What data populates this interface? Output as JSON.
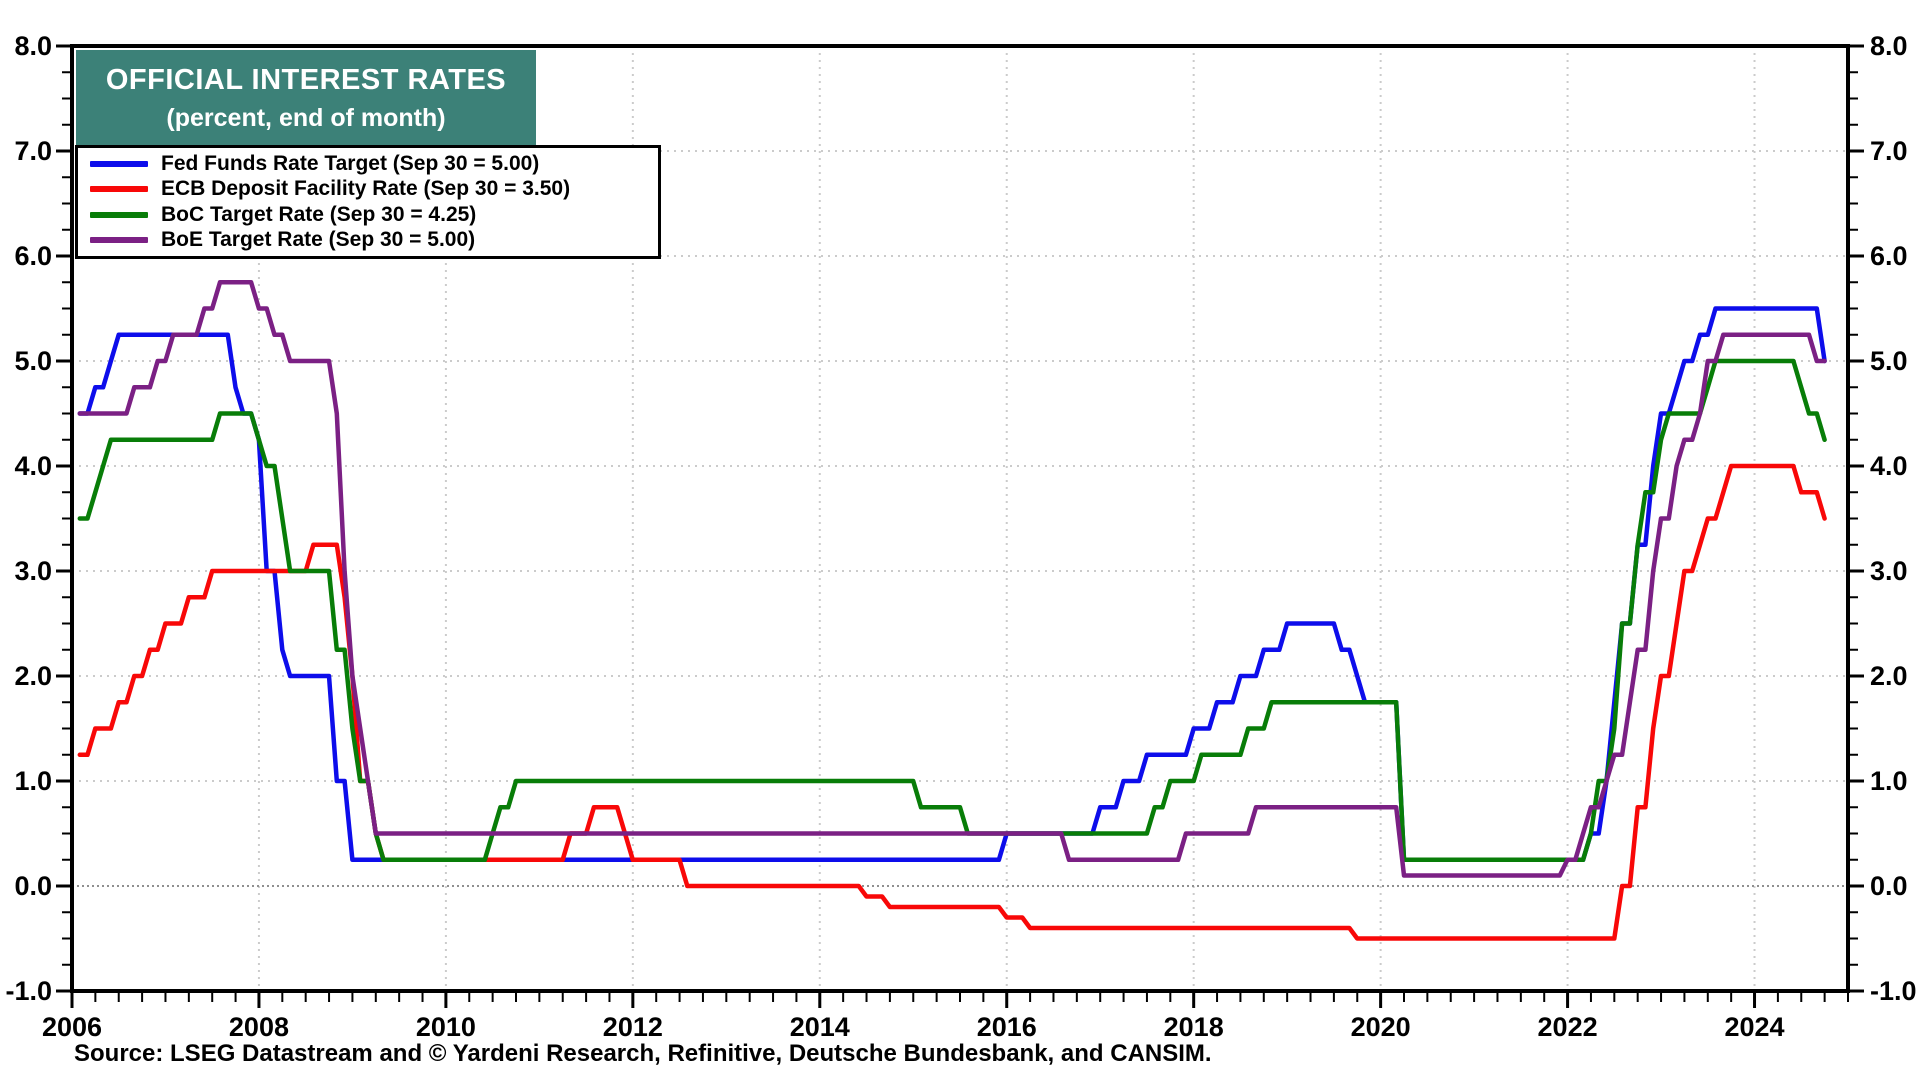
{
  "title_box": {
    "line1": "OFFICIAL INTEREST RATES",
    "line2": "(percent, end of month)",
    "bg_color": "#3C8178",
    "text_color": "#FFFFFF"
  },
  "source_note": "Source: LSEG Datastream and © Yardeni Research, Refinitive, Deutsche Bundesbank, and CANSIM.",
  "chart_data": {
    "type": "line",
    "title": "OFFICIAL INTEREST RATES",
    "subtitle": "(percent, end of month)",
    "frequency": "monthly, end of month; x encoded as year + month/12",
    "x_end": 2024.75,
    "x_axis": {
      "range": [
        2006,
        2025
      ],
      "minor_tick_step": 0.25
    },
    "y_axis": {
      "range": [
        -1,
        8
      ],
      "minor_tick_step": 0.25,
      "label_sides": "both"
    },
    "x_ticks": [
      {
        "v": 2006,
        "label": "2006"
      },
      {
        "v": 2008,
        "label": "2008"
      },
      {
        "v": 2010,
        "label": "2010"
      },
      {
        "v": 2012,
        "label": "2012"
      },
      {
        "v": 2014,
        "label": "2014"
      },
      {
        "v": 2016,
        "label": "2016"
      },
      {
        "v": 2018,
        "label": "2018"
      },
      {
        "v": 2020,
        "label": "2020"
      },
      {
        "v": 2022,
        "label": "2022"
      },
      {
        "v": 2024,
        "label": "2024"
      }
    ],
    "y_ticks": [
      {
        "v": 8,
        "label": "8.0"
      },
      {
        "v": 7,
        "label": "7.0"
      },
      {
        "v": 6,
        "label": "6.0"
      },
      {
        "v": 5,
        "label": "5.0"
      },
      {
        "v": 4,
        "label": "4.0"
      },
      {
        "v": 3,
        "label": "3.0"
      },
      {
        "v": 2,
        "label": "2.0"
      },
      {
        "v": 1,
        "label": "1.0"
      },
      {
        "v": 0,
        "label": "0.0"
      },
      {
        "v": -1,
        "label": "-1.0"
      }
    ],
    "gridlines": {
      "vertical_years": [
        2008,
        2010,
        2012,
        2014,
        2016,
        2018,
        2020,
        2022,
        2024
      ],
      "horizontal_values": [
        1,
        2,
        3,
        4,
        5,
        6,
        7
      ],
      "zero_line": 0,
      "style": "dotted"
    },
    "style": {
      "frame_color": "#000000",
      "grid_color": "#CBCBCB",
      "zero_line_color": "#8F8F8F"
    },
    "legend_position": "top-left",
    "series": [
      {
        "id": "fed",
        "label": "Fed Funds Rate Target (Sep 30 = 5.00)",
        "color": "#0D0DEB",
        "last_value": 5.0,
        "steps": [
          [
            2006.083,
            4.5
          ],
          [
            2006.25,
            4.75
          ],
          [
            2006.417,
            5.0
          ],
          [
            2006.5,
            5.25
          ],
          [
            2007.75,
            4.75
          ],
          [
            2007.833,
            4.5
          ],
          [
            2008.0,
            4.25
          ],
          [
            2008.083,
            3.0
          ],
          [
            2008.25,
            2.25
          ],
          [
            2008.333,
            2.0
          ],
          [
            2008.833,
            1.0
          ],
          [
            2009.0,
            0.25
          ],
          [
            2016.0,
            0.5
          ],
          [
            2017.0,
            0.75
          ],
          [
            2017.25,
            1.0
          ],
          [
            2017.5,
            1.25
          ],
          [
            2018.0,
            1.5
          ],
          [
            2018.25,
            1.75
          ],
          [
            2018.5,
            2.0
          ],
          [
            2018.75,
            2.25
          ],
          [
            2019.0,
            2.5
          ],
          [
            2019.583,
            2.25
          ],
          [
            2019.75,
            2.0
          ],
          [
            2019.833,
            1.75
          ],
          [
            2020.25,
            0.25
          ],
          [
            2022.25,
            0.5
          ],
          [
            2022.417,
            1.0
          ],
          [
            2022.5,
            1.75
          ],
          [
            2022.583,
            2.5
          ],
          [
            2022.75,
            3.25
          ],
          [
            2022.917,
            4.0
          ],
          [
            2023.0,
            4.5
          ],
          [
            2023.167,
            4.75
          ],
          [
            2023.25,
            5.0
          ],
          [
            2023.417,
            5.25
          ],
          [
            2023.583,
            5.5
          ],
          [
            2024.75,
            5.0
          ]
        ]
      },
      {
        "id": "ecb",
        "label": "ECB Deposit Facility Rate (Sep 30 = 3.50)",
        "color": "#F80808",
        "last_value": 3.5,
        "steps": [
          [
            2006.083,
            1.25
          ],
          [
            2006.25,
            1.5
          ],
          [
            2006.5,
            1.75
          ],
          [
            2006.667,
            2.0
          ],
          [
            2006.833,
            2.25
          ],
          [
            2007.0,
            2.5
          ],
          [
            2007.25,
            2.75
          ],
          [
            2007.5,
            3.0
          ],
          [
            2008.583,
            3.25
          ],
          [
            2008.917,
            2.75
          ],
          [
            2009.0,
            2.0
          ],
          [
            2009.083,
            1.0
          ],
          [
            2009.25,
            0.5
          ],
          [
            2009.333,
            0.25
          ],
          [
            2011.333,
            0.5
          ],
          [
            2011.583,
            0.75
          ],
          [
            2011.917,
            0.5
          ],
          [
            2012.0,
            0.25
          ],
          [
            2012.583,
            0.0
          ],
          [
            2014.5,
            -0.1
          ],
          [
            2014.75,
            -0.2
          ],
          [
            2016.0,
            -0.3
          ],
          [
            2016.25,
            -0.4
          ],
          [
            2019.75,
            -0.5
          ],
          [
            2022.583,
            0.0
          ],
          [
            2022.75,
            0.75
          ],
          [
            2022.917,
            1.5
          ],
          [
            2023.0,
            2.0
          ],
          [
            2023.167,
            2.5
          ],
          [
            2023.25,
            3.0
          ],
          [
            2023.417,
            3.25
          ],
          [
            2023.5,
            3.5
          ],
          [
            2023.667,
            3.75
          ],
          [
            2023.75,
            4.0
          ],
          [
            2024.5,
            3.75
          ],
          [
            2024.75,
            3.5
          ]
        ]
      },
      {
        "id": "boc",
        "label": "BoC Target Rate (Sep 30 = 4.25)",
        "color": "#087D08",
        "last_value": 4.25,
        "steps": [
          [
            2006.083,
            3.5
          ],
          [
            2006.25,
            3.75
          ],
          [
            2006.333,
            4.0
          ],
          [
            2006.417,
            4.25
          ],
          [
            2007.583,
            4.5
          ],
          [
            2008.0,
            4.25
          ],
          [
            2008.083,
            4.0
          ],
          [
            2008.25,
            3.5
          ],
          [
            2008.333,
            3.0
          ],
          [
            2008.833,
            2.25
          ],
          [
            2009.0,
            1.5
          ],
          [
            2009.083,
            1.0
          ],
          [
            2009.25,
            0.5
          ],
          [
            2009.333,
            0.25
          ],
          [
            2010.5,
            0.5
          ],
          [
            2010.583,
            0.75
          ],
          [
            2010.75,
            1.0
          ],
          [
            2015.083,
            0.75
          ],
          [
            2015.583,
            0.5
          ],
          [
            2017.583,
            0.75
          ],
          [
            2017.75,
            1.0
          ],
          [
            2018.083,
            1.25
          ],
          [
            2018.583,
            1.5
          ],
          [
            2018.833,
            1.75
          ],
          [
            2020.25,
            0.25
          ],
          [
            2022.25,
            0.5
          ],
          [
            2022.333,
            1.0
          ],
          [
            2022.5,
            1.5
          ],
          [
            2022.583,
            2.5
          ],
          [
            2022.75,
            3.25
          ],
          [
            2022.833,
            3.75
          ],
          [
            2023.0,
            4.25
          ],
          [
            2023.083,
            4.5
          ],
          [
            2023.5,
            4.75
          ],
          [
            2023.583,
            5.0
          ],
          [
            2024.5,
            4.75
          ],
          [
            2024.583,
            4.5
          ],
          [
            2024.75,
            4.25
          ]
        ]
      },
      {
        "id": "boe",
        "label": "BoE Target Rate (Sep 30 = 5.00)",
        "color": "#7B2084",
        "last_value": 5.0,
        "steps": [
          [
            2006.083,
            4.5
          ],
          [
            2006.667,
            4.75
          ],
          [
            2006.917,
            5.0
          ],
          [
            2007.083,
            5.25
          ],
          [
            2007.417,
            5.5
          ],
          [
            2007.583,
            5.75
          ],
          [
            2008.0,
            5.5
          ],
          [
            2008.167,
            5.25
          ],
          [
            2008.333,
            5.0
          ],
          [
            2008.833,
            4.5
          ],
          [
            2008.917,
            3.0
          ],
          [
            2009.0,
            2.0
          ],
          [
            2009.083,
            1.5
          ],
          [
            2009.167,
            1.0
          ],
          [
            2009.25,
            0.5
          ],
          [
            2016.667,
            0.25
          ],
          [
            2017.917,
            0.5
          ],
          [
            2018.667,
            0.75
          ],
          [
            2020.25,
            0.1
          ],
          [
            2022.0,
            0.25
          ],
          [
            2022.167,
            0.5
          ],
          [
            2022.25,
            0.75
          ],
          [
            2022.417,
            1.0
          ],
          [
            2022.5,
            1.25
          ],
          [
            2022.667,
            1.75
          ],
          [
            2022.75,
            2.25
          ],
          [
            2022.917,
            3.0
          ],
          [
            2023.0,
            3.5
          ],
          [
            2023.167,
            4.0
          ],
          [
            2023.25,
            4.25
          ],
          [
            2023.417,
            4.5
          ],
          [
            2023.5,
            5.0
          ],
          [
            2023.667,
            5.25
          ],
          [
            2024.667,
            5.0
          ]
        ]
      }
    ]
  }
}
